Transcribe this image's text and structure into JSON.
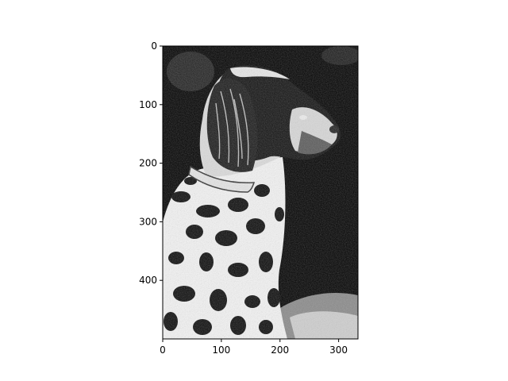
{
  "chart_data": {
    "type": "image",
    "title": "",
    "xlabel": "",
    "ylabel": "",
    "image_width": 333,
    "image_height": 500,
    "xlim": [
      0,
      333
    ],
    "ylim": [
      500,
      0
    ],
    "x_ticks": [
      0,
      100,
      200,
      300
    ],
    "x_tick_labels": [
      "0",
      "100",
      "200",
      "300"
    ],
    "y_ticks": [
      0,
      100,
      200,
      300,
      400
    ],
    "y_tick_labels": [
      "0",
      "100",
      "200",
      "300",
      "400"
    ],
    "grid": false,
    "image_subject": "high-contrast black and white photo of a spaniel dog in profile",
    "colors": {
      "background": "#000000",
      "foreground": "#ffffff",
      "axis": "#000000"
    }
  }
}
